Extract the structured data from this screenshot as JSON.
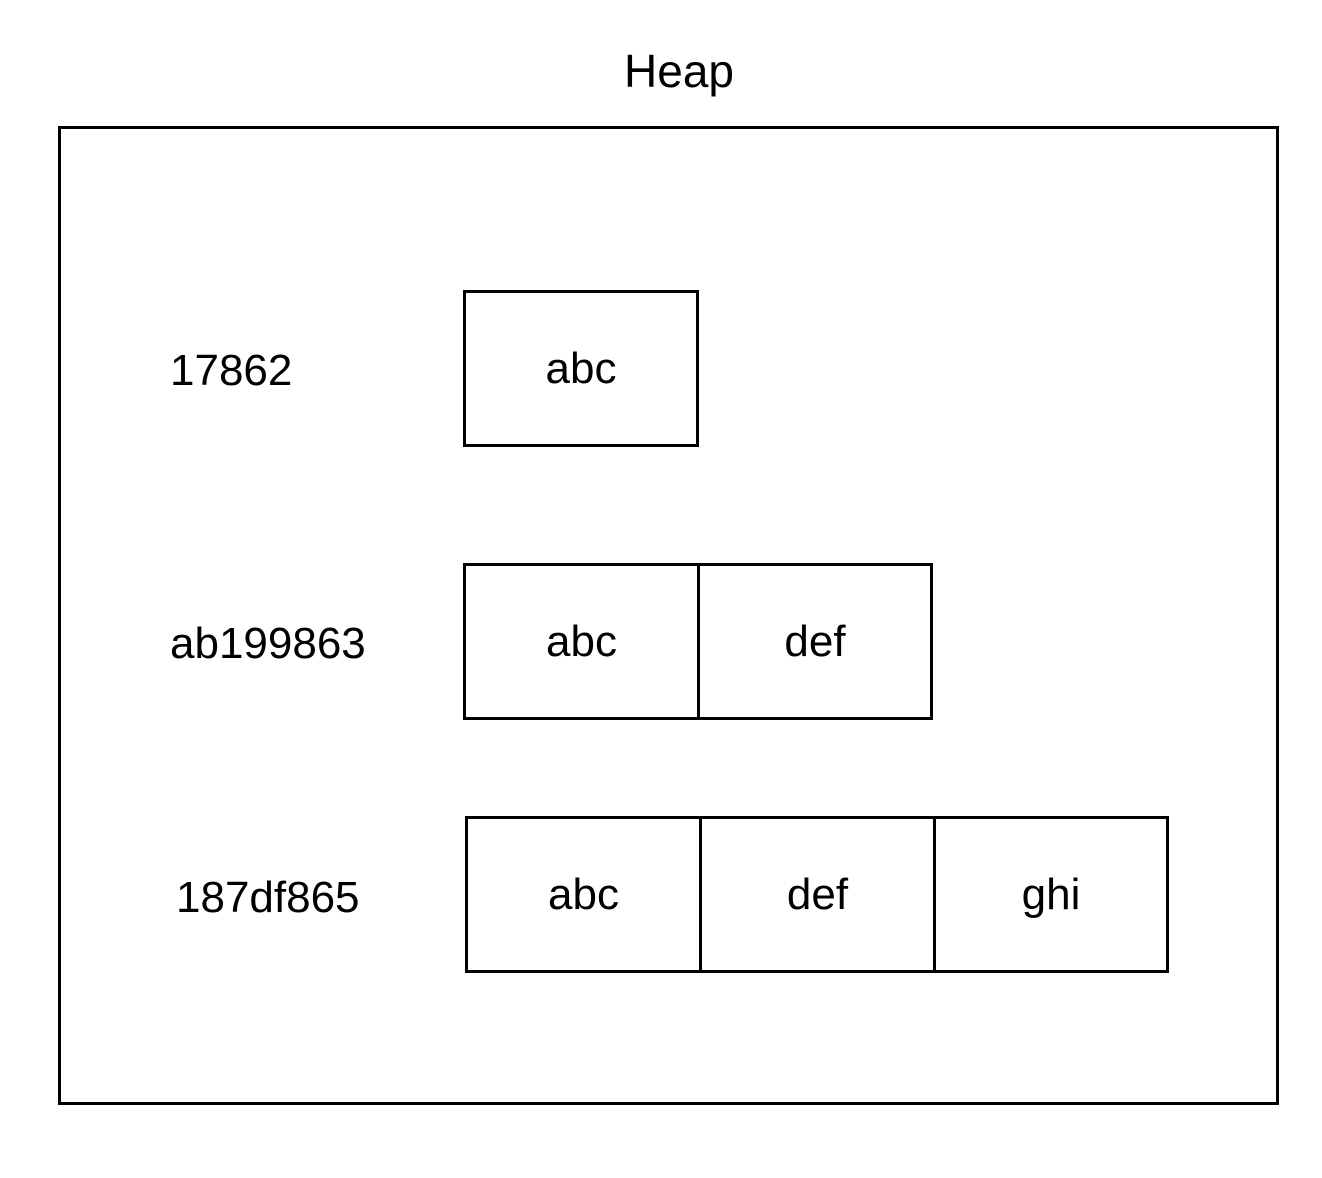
{
  "title": "Heap",
  "objects": [
    {
      "address": "17862",
      "cells": [
        "abc"
      ]
    },
    {
      "address": "ab199863",
      "cells": [
        "abc",
        "def"
      ]
    },
    {
      "address": "187df865",
      "cells": [
        "abc",
        "def",
        "ghi"
      ]
    }
  ]
}
